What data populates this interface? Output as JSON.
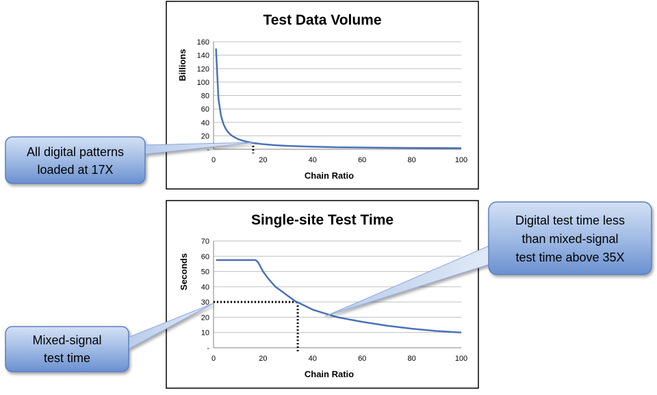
{
  "chart_data": [
    {
      "type": "line",
      "title": "Test Data Volume",
      "xlabel": "Chain Ratio",
      "ylabel": "Billions",
      "xlim": [
        0,
        100
      ],
      "ylim": [
        0,
        160
      ],
      "x_ticks": [
        "0",
        "20",
        "40",
        "60",
        "80",
        "100"
      ],
      "y_ticks": [
        "-",
        "20",
        "40",
        "60",
        "80",
        "100",
        "120",
        "140",
        "160"
      ],
      "grid": true,
      "series": [
        {
          "color": "#4a72b8",
          "points": [
            [
              1,
              150
            ],
            [
              2,
              75
            ],
            [
              3,
              50
            ],
            [
              4,
              37.5
            ],
            [
              5,
              30
            ],
            [
              6,
              25
            ],
            [
              7,
              21.4
            ],
            [
              8,
              18.8
            ],
            [
              10,
              15
            ],
            [
              12,
              12.5
            ],
            [
              14,
              10.7
            ],
            [
              17,
              8.8
            ],
            [
              20,
              7.5
            ],
            [
              25,
              6
            ],
            [
              30,
              5
            ],
            [
              35,
              4.3
            ],
            [
              40,
              3.75
            ],
            [
              50,
              3
            ],
            [
              60,
              2.5
            ],
            [
              70,
              2.1
            ],
            [
              80,
              1.9
            ],
            [
              90,
              1.7
            ],
            [
              100,
              1.5
            ]
          ]
        }
      ],
      "annotations": [
        {
          "type": "vertical-dotted",
          "x": 16
        }
      ]
    },
    {
      "type": "line",
      "title": "Single-site Test Time",
      "xlabel": "Chain Ratio",
      "ylabel": "Seconds",
      "xlim": [
        0,
        100
      ],
      "ylim": [
        0,
        70
      ],
      "x_ticks": [
        "0",
        "20",
        "40",
        "60",
        "80",
        "100"
      ],
      "y_ticks": [
        "-",
        "10",
        "20",
        "30",
        "40",
        "50",
        "60",
        "70"
      ],
      "grid": true,
      "series": [
        {
          "color": "#4a72b8",
          "points": [
            [
              1,
              57.5
            ],
            [
              5,
              57.5
            ],
            [
              10,
              57.5
            ],
            [
              15,
              57.5
            ],
            [
              17,
              57.5
            ],
            [
              18,
              56
            ],
            [
              20,
              50
            ],
            [
              22,
              45.5
            ],
            [
              25,
              40
            ],
            [
              28,
              36.5
            ],
            [
              30,
              34
            ],
            [
              33,
              30.5
            ],
            [
              35,
              29
            ],
            [
              40,
              25
            ],
            [
              45,
              22.5
            ],
            [
              50,
              20
            ],
            [
              60,
              17
            ],
            [
              70,
              14.5
            ],
            [
              80,
              12.5
            ],
            [
              90,
              11
            ],
            [
              100,
              10
            ]
          ]
        }
      ],
      "annotations": [
        {
          "type": "horizontal-dotted",
          "y": 30,
          "x_end": 34
        },
        {
          "type": "vertical-dotted",
          "x": 34,
          "y_top": 30
        }
      ]
    }
  ],
  "callouts": [
    {
      "lines": [
        "All digital patterns",
        "loaded at 17X"
      ]
    },
    {
      "lines": [
        "Mixed-signal",
        "test time"
      ]
    },
    {
      "lines": [
        "Digital test time less",
        "than mixed-signal",
        "test time above 35X"
      ]
    }
  ],
  "colors": {
    "line": "#4a72b8",
    "callout_fill_top": "#c9d8f0",
    "callout_fill_bottom": "#6d93d1",
    "callout_stroke": "#5a7fc0"
  }
}
